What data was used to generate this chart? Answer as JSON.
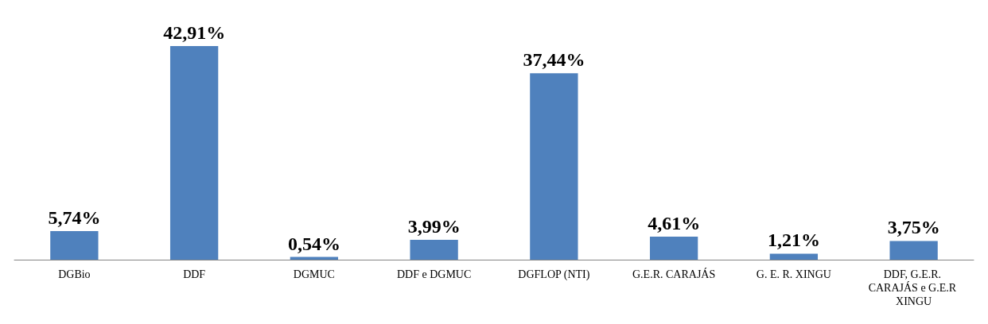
{
  "chart_data": {
    "type": "bar",
    "categories": [
      "DGBio",
      "DDF",
      "DGMUC",
      "DDF e DGMUC",
      "DGFLOP (NTI)",
      "G.E.R. CARAJÁS",
      "G. E. R. XINGU",
      "DDF, G.E.R. CARAJÁS e G.E.R XINGU"
    ],
    "values": [
      5.74,
      42.91,
      0.54,
      3.99,
      37.44,
      4.61,
      1.21,
      3.75
    ],
    "value_labels": [
      "5,74%",
      "42,91%",
      "0,54%",
      "3,99%",
      "37,44%",
      "4,61%",
      "1,21%",
      "3,75%"
    ],
    "color": "#4f81bd"
  }
}
